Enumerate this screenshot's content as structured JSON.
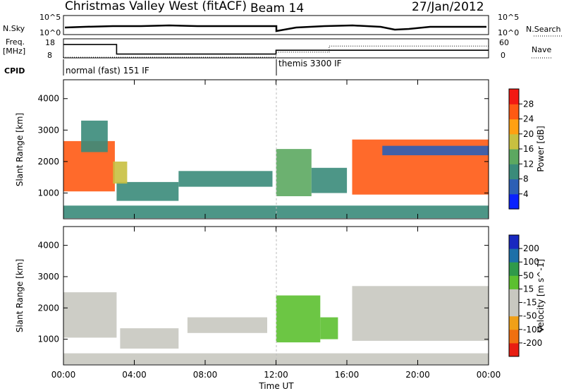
{
  "header": {
    "station_title": "Christmas Valley West (fitACF)",
    "beam_label": "Beam 14",
    "date": "27/Jan/2012"
  },
  "strip_labels": {
    "n_sky": "N.Sky",
    "n_search": "N.Search",
    "freq": "Freq.",
    "mhz": "[MHz]",
    "nave": "Nave",
    "cpid": "CPID",
    "nsky_top": "10^5",
    "nsky_bottom": "10^0",
    "nsearch_top": "10^5",
    "nsearch_bottom": "10^0",
    "freq_top": "18",
    "freq_bottom": "8",
    "nave_top": "60",
    "nave_bottom": "0"
  },
  "cpid_modes": [
    {
      "label": "normal (fast) 151 IF",
      "start_hour": 0
    },
    {
      "label": "themis 3300 IF",
      "start_hour": 12
    }
  ],
  "freq_trace_mhz": [
    {
      "from": 0,
      "to": 3,
      "value": 15
    },
    {
      "from": 3,
      "to": 12,
      "value": 10
    },
    {
      "from": 12,
      "to": 24,
      "value": 12
    }
  ],
  "nave_trace": [
    {
      "from": 0,
      "to": 12,
      "value": 2
    },
    {
      "from": 12,
      "to": 15,
      "value": 18
    },
    {
      "from": 15,
      "to": 24,
      "value": 37
    }
  ],
  "x_axis": {
    "label": "Time UT",
    "range_hours": [
      0,
      24
    ],
    "ticks": [
      {
        "hour": 0,
        "label": "00:00"
      },
      {
        "hour": 4,
        "label": "04:00"
      },
      {
        "hour": 8,
        "label": "08:00"
      },
      {
        "hour": 12,
        "label": "12:00"
      },
      {
        "hour": 16,
        "label": "16:00"
      },
      {
        "hour": 20,
        "label": "20:00"
      },
      {
        "hour": 24,
        "label": "00:00"
      }
    ]
  },
  "chart_data": [
    {
      "type": "heatmap",
      "panel": "power",
      "ylabel": "Slant Range [km]",
      "ylim": [
        180,
        4600
      ],
      "yticks": [
        1000,
        2000,
        3000,
        4000
      ],
      "colorbar": {
        "label": "Power [dB]",
        "range": [
          0,
          32
        ],
        "ticks": [
          4,
          8,
          12,
          16,
          20,
          24,
          28
        ],
        "colors": [
          "#0a22ff",
          "#2c5fb5",
          "#3a8b7a",
          "#5ca860",
          "#c8c040",
          "#ffa012",
          "#ff5a14",
          "#f21a12"
        ]
      },
      "regions": [
        {
          "t0": 0.0,
          "t1": 2.9,
          "r0": 1050,
          "r1": 2650,
          "value": 26
        },
        {
          "t0": 1.0,
          "t1": 2.5,
          "r0": 2300,
          "r1": 3300,
          "value": 8
        },
        {
          "t0": 3.0,
          "t1": 6.5,
          "r0": 750,
          "r1": 1350,
          "value": 10
        },
        {
          "t0": 2.8,
          "t1": 3.6,
          "r0": 1300,
          "r1": 2000,
          "value": 18
        },
        {
          "t0": 6.5,
          "t1": 11.8,
          "r0": 1200,
          "r1": 1700,
          "value": 10
        },
        {
          "t0": 12.0,
          "t1": 14.0,
          "r0": 900,
          "r1": 2400,
          "value": 14
        },
        {
          "t0": 14.0,
          "t1": 16.0,
          "r0": 1000,
          "r1": 1800,
          "value": 8
        },
        {
          "t0": 16.3,
          "t1": 24.0,
          "r0": 950,
          "r1": 2700,
          "value": 26
        },
        {
          "t0": 18.0,
          "t1": 24.0,
          "r0": 2200,
          "r1": 2500,
          "value": 6
        },
        {
          "t0": 0.0,
          "t1": 24.0,
          "r0": 200,
          "r1": 600,
          "value": 10
        }
      ]
    },
    {
      "type": "heatmap",
      "panel": "velocity",
      "ylabel": "Slant Range [km]",
      "ylim": [
        180,
        4600
      ],
      "yticks": [
        1000,
        2000,
        3000,
        4000
      ],
      "colorbar": {
        "label": "Velocity [m s^-1]",
        "range": [
          -250,
          250
        ],
        "ticks": [
          -200,
          -100,
          -50,
          -15,
          15,
          50,
          100,
          200
        ],
        "colors": [
          "#e81e12",
          "#f07010",
          "#f0a018",
          "#c8c8c0",
          "#c8c8c0",
          "#5cc030",
          "#2f9a4a",
          "#1c70a8",
          "#1828c0"
        ]
      },
      "regions": [
        {
          "t0": 0.0,
          "t1": 3.0,
          "r0": 1050,
          "r1": 2500,
          "value": 0
        },
        {
          "t0": 3.2,
          "t1": 6.5,
          "r0": 700,
          "r1": 1350,
          "value": -80
        },
        {
          "t0": 7.0,
          "t1": 11.5,
          "r0": 1200,
          "r1": 1700,
          "value": -60
        },
        {
          "t0": 12.0,
          "t1": 14.5,
          "r0": 900,
          "r1": 2400,
          "value": 60
        },
        {
          "t0": 14.5,
          "t1": 15.5,
          "r0": 1000,
          "r1": 1700,
          "value": 40
        },
        {
          "t0": 16.3,
          "t1": 24.0,
          "r0": 950,
          "r1": 2700,
          "value": 0
        },
        {
          "t0": 0.0,
          "t1": 24.0,
          "r0": 200,
          "r1": 550,
          "value": -40
        }
      ]
    }
  ]
}
